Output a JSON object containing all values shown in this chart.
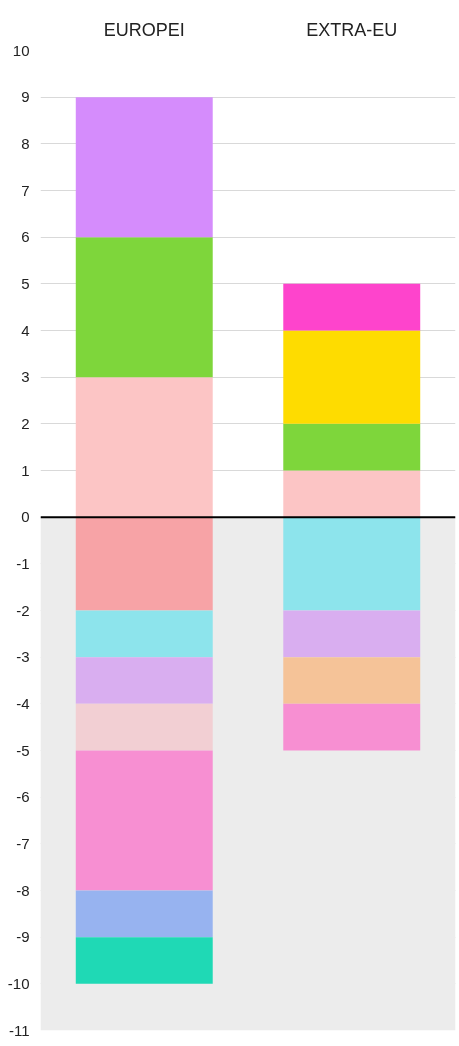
{
  "chart_data": {
    "type": "bar",
    "stacked": true,
    "categories": [
      "EUROPEI",
      "EXTRA-EU"
    ],
    "series": [
      {
        "color": "#fcc5c5",
        "values": [
          3,
          1
        ]
      },
      {
        "color": "#7ed63b",
        "values": [
          3,
          1
        ]
      },
      {
        "color": "#d58cfc",
        "values": [
          3,
          null
        ]
      },
      {
        "color": "#fedc00",
        "values": [
          null,
          2
        ]
      },
      {
        "color": "#fe44cc",
        "values": [
          null,
          1
        ]
      },
      {
        "color": "#f7a3a6",
        "values": [
          -2,
          null
        ]
      },
      {
        "color": "#8de4ec",
        "values": [
          -1,
          -2
        ]
      },
      {
        "color": "#d9aef0",
        "values": [
          -1,
          -1
        ]
      },
      {
        "color": "#f2cfd3",
        "values": [
          -1,
          null
        ]
      },
      {
        "color": "#f5c398",
        "values": [
          null,
          -1
        ]
      },
      {
        "color": "#f78fd2",
        "values": [
          -3,
          -1
        ]
      },
      {
        "color": "#97b3f0",
        "values": [
          -1,
          null
        ]
      },
      {
        "color": "#1fd9b5",
        "values": [
          -1,
          null
        ]
      }
    ],
    "ylim": [
      -11,
      10
    ],
    "yticks": [
      -11,
      -10,
      -9,
      -8,
      -7,
      -6,
      -5,
      -4,
      -3,
      -2,
      -1,
      0,
      1,
      2,
      3,
      4,
      5,
      6,
      7,
      8,
      9,
      10
    ],
    "grid": "y",
    "bands": [
      {
        "axis": "y",
        "from": -11,
        "to": 0,
        "color": "#ececec"
      }
    ],
    "ref_lines": [
      {
        "axis": "y",
        "value": 0,
        "color": "#000000"
      }
    ]
  }
}
